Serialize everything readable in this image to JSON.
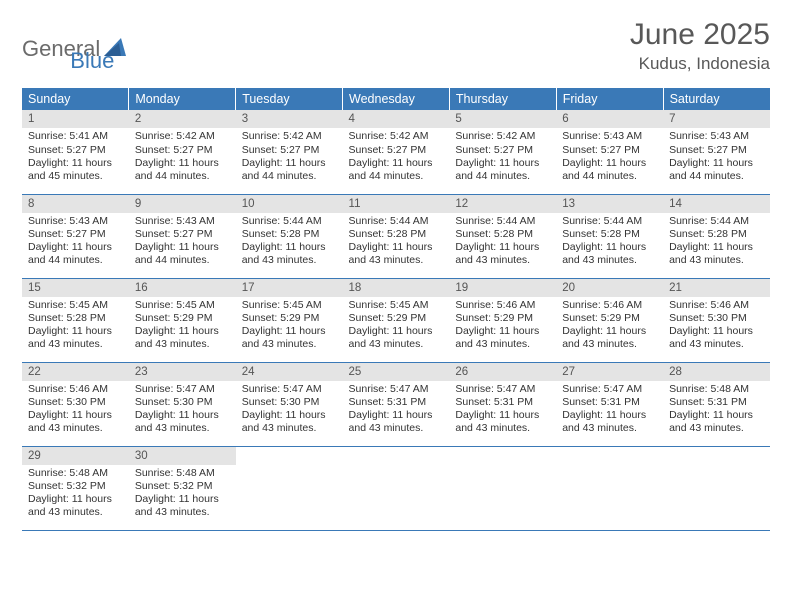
{
  "logo": {
    "text1": "General",
    "text2": "Blue"
  },
  "title": {
    "month": "June 2025",
    "location": "Kudus, Indonesia"
  },
  "colors": {
    "header_bg": "#3a79b7",
    "header_text": "#ffffff",
    "daynum_bg": "#e4e4e4",
    "daynum_text": "#555555",
    "body_text": "#333333",
    "rule": "#3a79b7",
    "logo_gray": "#6b6b6b",
    "logo_blue": "#3a79b7"
  },
  "weekdays": [
    "Sunday",
    "Monday",
    "Tuesday",
    "Wednesday",
    "Thursday",
    "Friday",
    "Saturday"
  ],
  "layout": {
    "columns": 7,
    "rows": 5
  },
  "days": [
    {
      "n": "1",
      "sr": "5:41 AM",
      "ss": "5:27 PM",
      "dl": "11 hours and 45 minutes."
    },
    {
      "n": "2",
      "sr": "5:42 AM",
      "ss": "5:27 PM",
      "dl": "11 hours and 44 minutes."
    },
    {
      "n": "3",
      "sr": "5:42 AM",
      "ss": "5:27 PM",
      "dl": "11 hours and 44 minutes."
    },
    {
      "n": "4",
      "sr": "5:42 AM",
      "ss": "5:27 PM",
      "dl": "11 hours and 44 minutes."
    },
    {
      "n": "5",
      "sr": "5:42 AM",
      "ss": "5:27 PM",
      "dl": "11 hours and 44 minutes."
    },
    {
      "n": "6",
      "sr": "5:43 AM",
      "ss": "5:27 PM",
      "dl": "11 hours and 44 minutes."
    },
    {
      "n": "7",
      "sr": "5:43 AM",
      "ss": "5:27 PM",
      "dl": "11 hours and 44 minutes."
    },
    {
      "n": "8",
      "sr": "5:43 AM",
      "ss": "5:27 PM",
      "dl": "11 hours and 44 minutes."
    },
    {
      "n": "9",
      "sr": "5:43 AM",
      "ss": "5:27 PM",
      "dl": "11 hours and 44 minutes."
    },
    {
      "n": "10",
      "sr": "5:44 AM",
      "ss": "5:28 PM",
      "dl": "11 hours and 43 minutes."
    },
    {
      "n": "11",
      "sr": "5:44 AM",
      "ss": "5:28 PM",
      "dl": "11 hours and 43 minutes."
    },
    {
      "n": "12",
      "sr": "5:44 AM",
      "ss": "5:28 PM",
      "dl": "11 hours and 43 minutes."
    },
    {
      "n": "13",
      "sr": "5:44 AM",
      "ss": "5:28 PM",
      "dl": "11 hours and 43 minutes."
    },
    {
      "n": "14",
      "sr": "5:44 AM",
      "ss": "5:28 PM",
      "dl": "11 hours and 43 minutes."
    },
    {
      "n": "15",
      "sr": "5:45 AM",
      "ss": "5:28 PM",
      "dl": "11 hours and 43 minutes."
    },
    {
      "n": "16",
      "sr": "5:45 AM",
      "ss": "5:29 PM",
      "dl": "11 hours and 43 minutes."
    },
    {
      "n": "17",
      "sr": "5:45 AM",
      "ss": "5:29 PM",
      "dl": "11 hours and 43 minutes."
    },
    {
      "n": "18",
      "sr": "5:45 AM",
      "ss": "5:29 PM",
      "dl": "11 hours and 43 minutes."
    },
    {
      "n": "19",
      "sr": "5:46 AM",
      "ss": "5:29 PM",
      "dl": "11 hours and 43 minutes."
    },
    {
      "n": "20",
      "sr": "5:46 AM",
      "ss": "5:29 PM",
      "dl": "11 hours and 43 minutes."
    },
    {
      "n": "21",
      "sr": "5:46 AM",
      "ss": "5:30 PM",
      "dl": "11 hours and 43 minutes."
    },
    {
      "n": "22",
      "sr": "5:46 AM",
      "ss": "5:30 PM",
      "dl": "11 hours and 43 minutes."
    },
    {
      "n": "23",
      "sr": "5:47 AM",
      "ss": "5:30 PM",
      "dl": "11 hours and 43 minutes."
    },
    {
      "n": "24",
      "sr": "5:47 AM",
      "ss": "5:30 PM",
      "dl": "11 hours and 43 minutes."
    },
    {
      "n": "25",
      "sr": "5:47 AM",
      "ss": "5:31 PM",
      "dl": "11 hours and 43 minutes."
    },
    {
      "n": "26",
      "sr": "5:47 AM",
      "ss": "5:31 PM",
      "dl": "11 hours and 43 minutes."
    },
    {
      "n": "27",
      "sr": "5:47 AM",
      "ss": "5:31 PM",
      "dl": "11 hours and 43 minutes."
    },
    {
      "n": "28",
      "sr": "5:48 AM",
      "ss": "5:31 PM",
      "dl": "11 hours and 43 minutes."
    },
    {
      "n": "29",
      "sr": "5:48 AM",
      "ss": "5:32 PM",
      "dl": "11 hours and 43 minutes."
    },
    {
      "n": "30",
      "sr": "5:48 AM",
      "ss": "5:32 PM",
      "dl": "11 hours and 43 minutes."
    }
  ],
  "labels": {
    "sunrise": "Sunrise:",
    "sunset": "Sunset:",
    "daylight": "Daylight:"
  }
}
